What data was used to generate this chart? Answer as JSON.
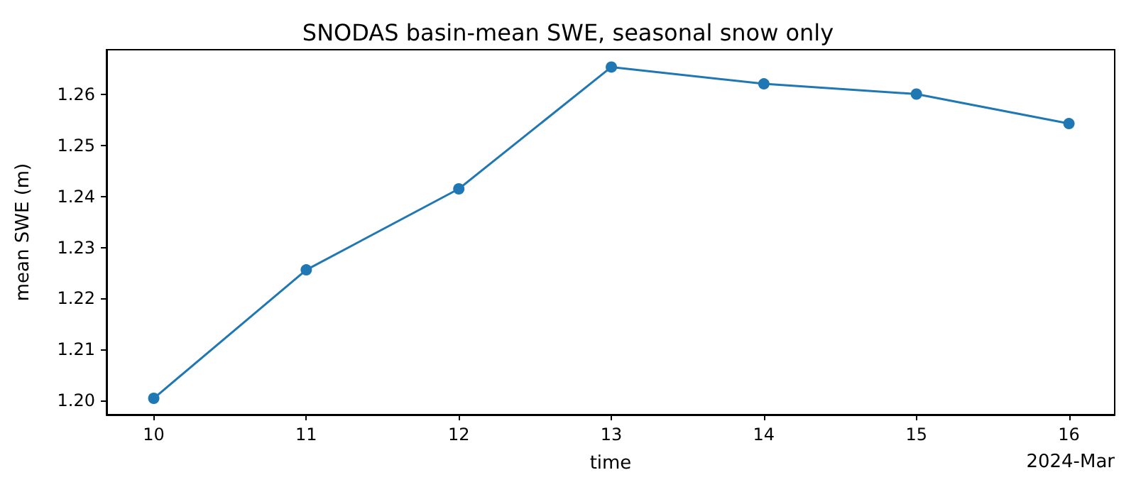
{
  "chart_data": {
    "type": "line",
    "title": "SNODAS basin-mean SWE, seasonal snow only",
    "xlabel": "time",
    "ylabel": "mean SWE (m)",
    "x": [
      "2024-03-10",
      "2024-03-11",
      "2024-03-12",
      "2024-03-13",
      "2024-03-14",
      "2024-03-15",
      "2024-03-16"
    ],
    "series": [
      {
        "color": "#1f77b4",
        "values": [
          1.2004,
          1.2256,
          1.2415,
          1.2654,
          1.2621,
          1.2601,
          1.2543
        ]
      }
    ],
    "xlim": [
      "2024-03-09T16:34",
      "2024-03-16T07:12"
    ],
    "xticks": [
      {
        "value": "2024-03-10",
        "label": "10"
      },
      {
        "value": "2024-03-11",
        "label": "11"
      },
      {
        "value": "2024-03-12",
        "label": "12"
      },
      {
        "value": "2024-03-13",
        "label": "13"
      },
      {
        "value": "2024-03-14",
        "label": "14"
      },
      {
        "value": "2024-03-15",
        "label": "15"
      },
      {
        "value": "2024-03-16",
        "label": "16"
      }
    ],
    "ylim": [
      1.1972,
      1.2688
    ],
    "yticks": [
      {
        "value": 1.2,
        "label": "1.20"
      },
      1.21,
      1.22,
      1.23,
      1.24,
      1.25,
      1.26
    ],
    "annotations": [
      "2024-Mar"
    ],
    "marker": "circle",
    "line_style": "solid"
  }
}
